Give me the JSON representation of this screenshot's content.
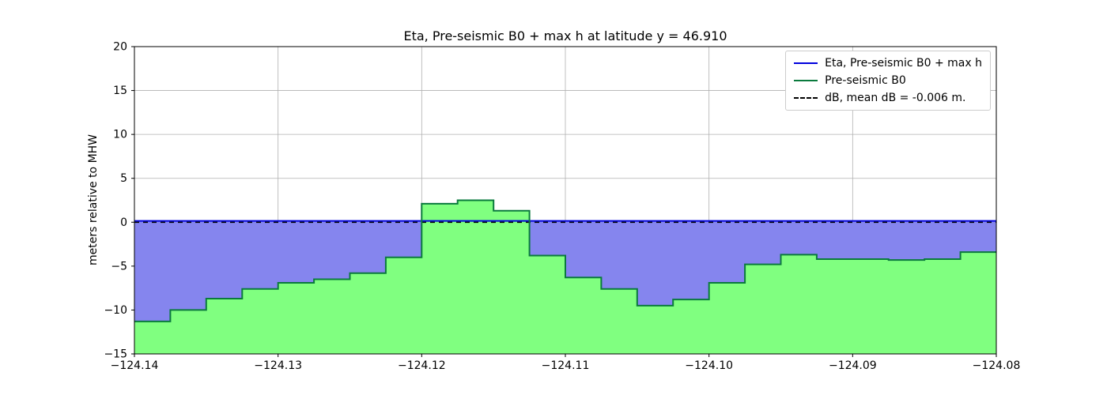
{
  "figure": {
    "title": "Eta, Pre-seismic B0 + max h at latitude y = 46.910",
    "ylabel": "meters relative to MHW"
  },
  "legend": {
    "position": "upper right",
    "items": [
      {
        "label": "Eta, Pre-seismic B0 + max h",
        "color": "#0000dd",
        "style": "solid"
      },
      {
        "label": "Pre-seismic B0",
        "color": "#0a7a3d",
        "style": "solid"
      },
      {
        "label": "dB, mean dB = -0.006 m.",
        "color": "#000000",
        "style": "dashed"
      }
    ]
  },
  "chart_data": {
    "type": "area",
    "title": "Eta, Pre-seismic B0 + max h at latitude y = 46.910",
    "xlabel": "",
    "ylabel": "meters relative to MHW",
    "xlim": [
      -124.14,
      -124.08
    ],
    "ylim": [
      -15,
      20
    ],
    "xticks": [
      -124.14,
      -124.13,
      -124.12,
      -124.11,
      -124.1,
      -124.09,
      -124.08
    ],
    "xtick_labels": [
      "−124.14",
      "−124.13",
      "−124.12",
      "−124.11",
      "−124.10",
      "−124.09",
      "−124.08"
    ],
    "yticks": [
      -15,
      -10,
      -5,
      0,
      5,
      10,
      15,
      20
    ],
    "ytick_labels": [
      "−15",
      "−10",
      "−5",
      "0",
      "5",
      "10",
      "15",
      "20"
    ],
    "grid": true,
    "grid_color": "#b0b0b0",
    "legend_position": "upper right",
    "series": [
      {
        "name": "Eta, Pre-seismic B0 + max h",
        "type": "hline",
        "value": 0.15,
        "line_color": "#0000dd",
        "line_style": "solid",
        "fill_to_bottom_color": "#8585ee"
      },
      {
        "name": "Pre-seismic B0",
        "type": "step",
        "x_edges": [
          -124.14,
          -124.1375,
          -124.135,
          -124.1325,
          -124.13,
          -124.1275,
          -124.125,
          -124.1225,
          -124.12,
          -124.1175,
          -124.115,
          -124.1125,
          -124.11,
          -124.1075,
          -124.105,
          -124.1025,
          -124.1,
          -124.0975,
          -124.095,
          -124.0925,
          -124.09,
          -124.0875,
          -124.085,
          -124.0825,
          -124.08
        ],
        "values": [
          -11.3,
          -10.0,
          -8.7,
          -7.6,
          -6.9,
          -6.5,
          -5.8,
          -4.0,
          2.1,
          2.5,
          1.3,
          -3.8,
          -6.3,
          -7.6,
          -9.5,
          -8.8,
          -6.9,
          -4.8,
          -3.7,
          -4.2,
          -4.2,
          -4.3,
          -4.2,
          -3.4
        ],
        "line_color": "#0a7a3d",
        "line_style": "solid",
        "fill_to_bottom_color": "#80ff80"
      },
      {
        "name": "dB, mean dB = -0.006 m.",
        "type": "hline",
        "value": -0.006,
        "line_color": "#000000",
        "line_style": "dashed"
      }
    ]
  }
}
